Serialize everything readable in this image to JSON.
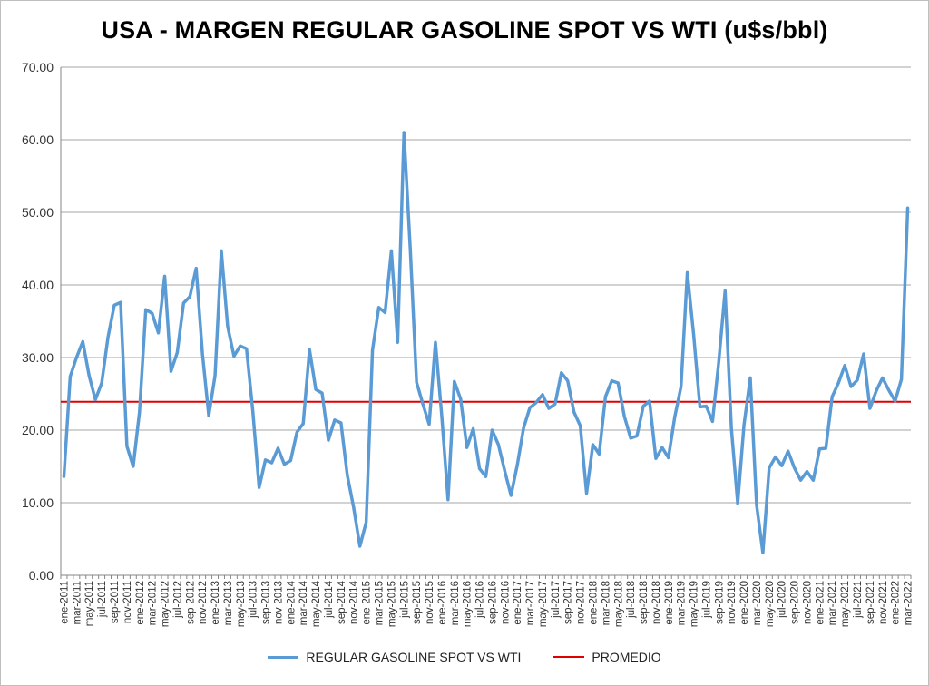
{
  "chart_data": {
    "type": "line",
    "title": "USA - MARGEN REGULAR GASOLINE SPOT VS WTI (u$s/bbl)",
    "ylim": [
      0,
      70
    ],
    "yticks": [
      "0.00",
      "10.00",
      "20.00",
      "30.00",
      "40.00",
      "50.00",
      "60.00",
      "70.00"
    ],
    "grid": true,
    "legend_position": "bottom",
    "x_labels": [
      "ene-2011",
      "mar-2011",
      "may-2011",
      "jul-2011",
      "sep-2011",
      "nov-2011",
      "ene-2012",
      "mar-2012",
      "may-2012",
      "jul-2012",
      "sep-2012",
      "nov-2012",
      "ene-2013",
      "mar-2013",
      "may-2013",
      "jul-2013",
      "sep-2013",
      "nov-2013",
      "ene-2014",
      "mar-2014",
      "may-2014",
      "jul-2014",
      "sep-2014",
      "nov-2014",
      "ene-2015",
      "mar-2015",
      "may-2015",
      "jul-2015",
      "sep-2015",
      "nov-2015",
      "ene-2016",
      "mar-2016",
      "may-2016",
      "jul-2016",
      "sep-2016",
      "nov-2016",
      "ene-2017",
      "mar-2017",
      "may-2017",
      "jul-2017",
      "sep-2017",
      "nov-2017",
      "ene-2018",
      "mar-2018",
      "may-2018",
      "jul-2018",
      "sep-2018",
      "nov-2018",
      "ene-2019",
      "mar-2019",
      "may-2019",
      "jul-2019",
      "sep-2019",
      "nov-2019",
      "ene-2020",
      "mar-2020",
      "may-2020",
      "jul-2020",
      "sep-2020",
      "nov-2020",
      "ene-2021",
      "mar-2021",
      "may-2021",
      "jul-2021",
      "sep-2021",
      "nov-2021",
      "ene-2022",
      "mar-2022"
    ],
    "series": [
      {
        "name": "REGULAR GASOLINE SPOT VS WTI",
        "color": "#5b9bd5",
        "values": [
          13.6,
          27.4,
          30.0,
          32.2,
          27.5,
          24.2,
          26.5,
          32.8,
          37.2,
          37.6,
          17.8,
          15.0,
          22.5,
          36.6,
          36.1,
          33.4,
          41.2,
          28.1,
          30.7,
          37.5,
          38.4,
          42.3,
          30.5,
          22.0,
          27.5,
          44.7,
          34.3,
          30.2,
          31.6,
          31.2,
          22.6,
          12.1,
          15.9,
          15.5,
          17.5,
          15.3,
          15.8,
          19.7,
          20.9,
          31.1,
          25.6,
          25.1,
          18.6,
          21.4,
          21.0,
          13.8,
          9.4,
          4.0,
          7.3,
          31.0,
          36.9,
          36.2,
          44.7,
          32.1,
          61.0,
          45.0,
          26.6,
          23.6,
          20.8,
          32.1,
          22.0,
          10.4,
          26.7,
          24.3,
          17.6,
          20.2,
          14.7,
          13.6,
          20.0,
          18.0,
          14.4,
          11.0,
          15.2,
          20.3,
          23.1,
          23.8,
          24.9,
          23.0,
          23.6,
          27.9,
          26.8,
          22.5,
          20.6,
          11.3,
          18.0,
          16.7,
          24.6,
          26.8,
          26.5,
          21.9,
          18.9,
          19.2,
          23.3,
          24.0,
          16.1,
          17.6,
          16.2,
          21.8,
          26.0,
          41.7,
          33.2,
          23.2,
          23.3,
          21.2,
          29.5,
          39.2,
          20.2,
          9.9,
          20.7,
          27.2,
          9.7,
          3.1,
          14.8,
          16.3,
          15.1,
          17.1,
          14.8,
          13.1,
          14.3,
          13.1,
          17.4,
          17.5,
          24.6,
          26.5,
          28.9,
          26.0,
          26.9,
          30.5,
          23.0,
          25.4,
          27.2,
          25.5,
          24.0,
          27.0,
          50.6
        ]
      },
      {
        "name": "PROMEDIO",
        "color": "#e00000",
        "values": [
          23.9
        ]
      }
    ]
  }
}
